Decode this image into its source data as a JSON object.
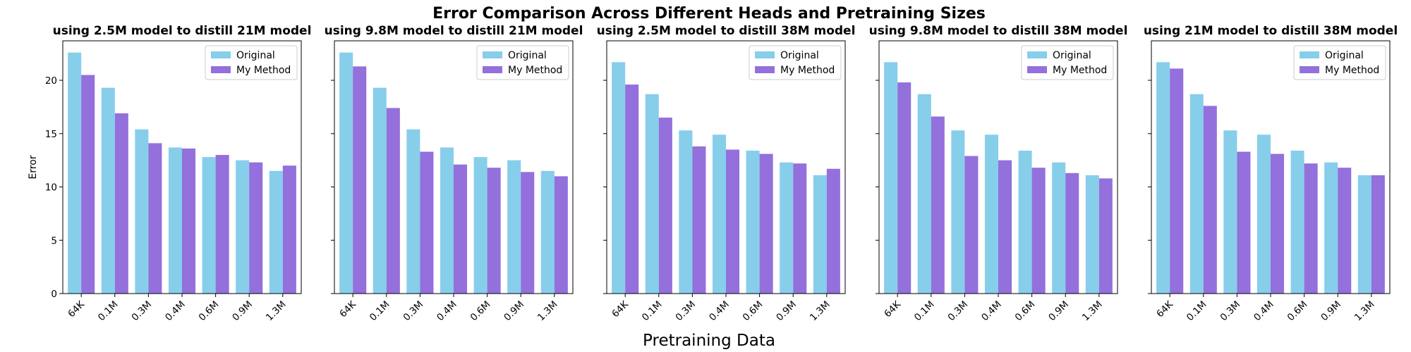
{
  "figure": {
    "title": "Error Comparison Across Different Heads and Pretraining Sizes",
    "xlabel": "Pretraining Data"
  },
  "colors": {
    "original": "#87CEEB",
    "method": "#9370DB"
  },
  "chart_data": [
    {
      "type": "bar",
      "title": "using 2.5M model to distill 21M model",
      "ylabel": "Error",
      "categories": [
        "64K",
        "0.1M",
        "0.3M",
        "0.4M",
        "0.6M",
        "0.9M",
        "1.3M"
      ],
      "yticks": [
        0,
        5,
        10,
        15,
        20
      ],
      "ylim": [
        0,
        23.7
      ],
      "legend": "top-right",
      "series": [
        {
          "name": "Original",
          "values": [
            22.6,
            19.3,
            15.4,
            13.7,
            12.8,
            12.5,
            11.5
          ]
        },
        {
          "name": "My Method",
          "values": [
            20.5,
            16.9,
            14.1,
            13.6,
            13.0,
            12.3,
            12.0
          ]
        }
      ]
    },
    {
      "type": "bar",
      "title": "using 9.8M model to distill 21M model",
      "ylabel": "",
      "categories": [
        "64K",
        "0.1M",
        "0.3M",
        "0.4M",
        "0.6M",
        "0.9M",
        "1.3M"
      ],
      "yticks": [
        0,
        5,
        10,
        15,
        20
      ],
      "ylim": [
        0,
        23.7
      ],
      "legend": "top-right",
      "series": [
        {
          "name": "Original",
          "values": [
            22.6,
            19.3,
            15.4,
            13.7,
            12.8,
            12.5,
            11.5
          ]
        },
        {
          "name": "My Method",
          "values": [
            21.3,
            17.4,
            13.3,
            12.1,
            11.8,
            11.4,
            11.0
          ]
        }
      ]
    },
    {
      "type": "bar",
      "title": "using 2.5M model to distill 38M model",
      "ylabel": "",
      "categories": [
        "64K",
        "0.1M",
        "0.3M",
        "0.4M",
        "0.6M",
        "0.9M",
        "1.3M"
      ],
      "yticks": [
        0,
        5,
        10,
        15,
        20
      ],
      "ylim": [
        0,
        23.7
      ],
      "legend": "top-right",
      "series": [
        {
          "name": "Original",
          "values": [
            21.7,
            18.7,
            15.3,
            14.9,
            13.4,
            12.3,
            11.1
          ]
        },
        {
          "name": "My Method",
          "values": [
            19.6,
            16.5,
            13.8,
            13.5,
            13.1,
            12.2,
            11.7
          ]
        }
      ]
    },
    {
      "type": "bar",
      "title": "using 9.8M model to distill 38M model",
      "ylabel": "",
      "categories": [
        "64K",
        "0.1M",
        "0.3M",
        "0.4M",
        "0.6M",
        "0.9M",
        "1.3M"
      ],
      "yticks": [
        0,
        5,
        10,
        15,
        20
      ],
      "ylim": [
        0,
        23.7
      ],
      "legend": "top-right",
      "series": [
        {
          "name": "Original",
          "values": [
            21.7,
            18.7,
            15.3,
            14.9,
            13.4,
            12.3,
            11.1
          ]
        },
        {
          "name": "My Method",
          "values": [
            19.8,
            16.6,
            12.9,
            12.5,
            11.8,
            11.3,
            10.8
          ]
        }
      ]
    },
    {
      "type": "bar",
      "title": "using 21M model to distill 38M model",
      "ylabel": "",
      "categories": [
        "64K",
        "0.1M",
        "0.3M",
        "0.4M",
        "0.6M",
        "0.9M",
        "1.3M"
      ],
      "yticks": [
        0,
        5,
        10,
        15,
        20
      ],
      "ylim": [
        0,
        23.7
      ],
      "legend": "top-right",
      "series": [
        {
          "name": "Original",
          "values": [
            21.7,
            18.7,
            15.3,
            14.9,
            13.4,
            12.3,
            11.1
          ]
        },
        {
          "name": "My Method",
          "values": [
            21.1,
            17.6,
            13.3,
            13.1,
            12.2,
            11.8,
            11.1
          ]
        }
      ]
    }
  ]
}
